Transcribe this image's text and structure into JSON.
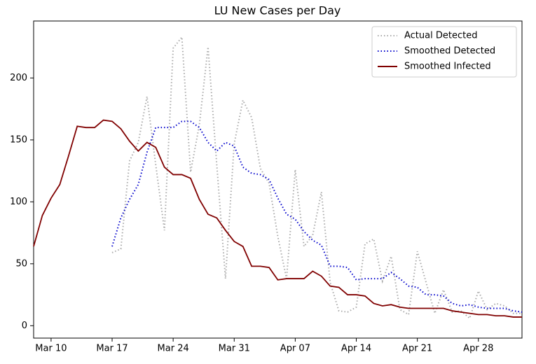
{
  "chart_data": {
    "type": "line",
    "title": "LU New Cases per Day",
    "categories": [
      null,
      null,
      "Mar 10",
      null,
      null,
      null,
      null,
      null,
      null,
      "Mar 17",
      null,
      null,
      null,
      null,
      null,
      null,
      "Mar 24",
      null,
      null,
      null,
      null,
      null,
      null,
      "Mar 31",
      null,
      null,
      null,
      null,
      null,
      null,
      "Apr 07",
      null,
      null,
      null,
      null,
      null,
      null,
      "Apr 14",
      null,
      null,
      null,
      null,
      null,
      null,
      "Apr 21",
      null,
      null,
      null,
      null,
      null,
      null,
      "Apr 28",
      null,
      null,
      null,
      null,
      null
    ],
    "series": [
      {
        "name": "Actual Detected",
        "color": "#aaaaaa",
        "style": "dotted",
        "values": [
          null,
          null,
          null,
          null,
          null,
          null,
          null,
          null,
          null,
          59,
          62,
          133,
          148,
          185,
          130,
          77,
          224,
          233,
          124,
          162,
          225,
          130,
          38,
          147,
          182,
          168,
          127,
          115,
          72,
          38,
          126,
          64,
          73,
          108,
          35,
          12,
          11,
          15,
          66,
          70,
          36,
          56,
          13,
          9,
          60,
          35,
          10,
          29,
          11,
          12,
          6,
          28,
          13,
          18,
          16,
          10,
          10
        ]
      },
      {
        "name": "Smoothed Detected",
        "color": "#0000cc",
        "style": "dotted",
        "values": [
          null,
          null,
          null,
          null,
          null,
          null,
          null,
          null,
          null,
          64,
          87,
          102,
          114,
          140,
          160,
          160,
          160,
          165,
          165,
          160,
          148,
          141,
          148,
          145,
          128,
          123,
          122,
          118,
          103,
          90,
          86,
          76,
          69,
          65,
          48,
          48,
          47,
          37,
          38,
          38,
          38,
          43,
          38,
          32,
          31,
          25,
          25,
          24,
          18,
          16,
          17,
          15,
          14,
          14,
          14,
          12,
          11
        ]
      },
      {
        "name": "Smoothed Infected",
        "color": "#800000",
        "style": "solid",
        "values": [
          64,
          89,
          103,
          114,
          137,
          161,
          160,
          160,
          166,
          165,
          159,
          149,
          141,
          148,
          144,
          128,
          122,
          122,
          119,
          102,
          90,
          87,
          77,
          68,
          64,
          48,
          48,
          47,
          37,
          38,
          38,
          38,
          44,
          40,
          32,
          31,
          25,
          25,
          24,
          18,
          16,
          17,
          15,
          14,
          14,
          14,
          14,
          14,
          12,
          11,
          10,
          9,
          9,
          8,
          8,
          7,
          7
        ]
      }
    ],
    "ylim": [
      -10,
      246
    ],
    "yticks": [
      0,
      50,
      100,
      150,
      200
    ],
    "legend": "upper right",
    "grid": false
  }
}
